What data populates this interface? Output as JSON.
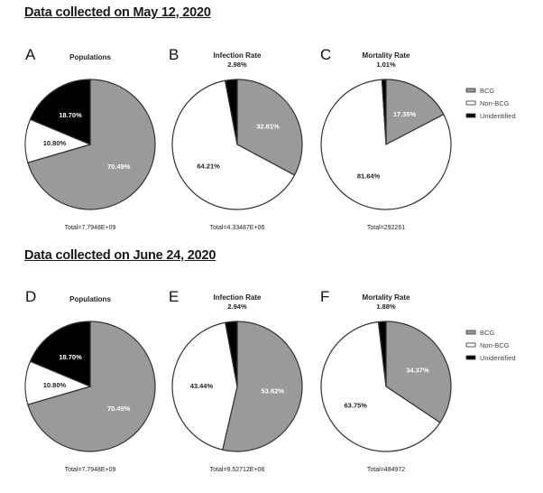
{
  "sections": [
    {
      "title": "Data collected on May 12, 2020"
    },
    {
      "title": "Data collected on June 24, 2020"
    }
  ],
  "colors": {
    "BCG": "#9a9a9a",
    "Non-BCG": "#ffffff",
    "Unidentified": "#000000",
    "outline": "#333333"
  },
  "chart_data": [
    {
      "type": "pie",
      "panel": "A",
      "title": "Populations",
      "total": "Total=7.7948E+09",
      "slices": [
        {
          "name": "BCG",
          "value": 70.49,
          "label": "70.49%"
        },
        {
          "name": "Non-BCG",
          "value": 10.8,
          "label": "10.80%"
        },
        {
          "name": "Unidentified",
          "value": 18.7,
          "label": "18.70%"
        }
      ],
      "legend": null
    },
    {
      "type": "pie",
      "panel": "B",
      "title": "Infection Rate",
      "total": "Total=4.33487E+06",
      "slices": [
        {
          "name": "BCG",
          "value": 32.81,
          "label": "32.81%"
        },
        {
          "name": "Non-BCG",
          "value": 64.21,
          "label": "64.21%"
        },
        {
          "name": "Unidentified",
          "value": 2.98,
          "label": "2.98%"
        }
      ],
      "legend": null
    },
    {
      "type": "pie",
      "panel": "C",
      "title": "Mortality Rate",
      "total": "Total=292261",
      "slices": [
        {
          "name": "BCG",
          "value": 17.35,
          "label": "17.35%"
        },
        {
          "name": "Non-BCG",
          "value": 81.64,
          "label": "81.64%"
        },
        {
          "name": "Unidentified",
          "value": 1.01,
          "label": "1.01%"
        }
      ],
      "legend": [
        "BCG",
        "Non-BCG",
        "Unidentified"
      ]
    },
    {
      "type": "pie",
      "panel": "D",
      "title": "Populations",
      "total": "Total=7.7948E+09",
      "slices": [
        {
          "name": "BCG",
          "value": 70.49,
          "label": "70.49%"
        },
        {
          "name": "Non-BCG",
          "value": 10.8,
          "label": "10.80%"
        },
        {
          "name": "Unidentified",
          "value": 18.7,
          "label": "18.70%"
        }
      ],
      "legend": null
    },
    {
      "type": "pie",
      "panel": "E",
      "title": "Infection Rate",
      "total": "Total=9.52712E+06",
      "slices": [
        {
          "name": "BCG",
          "value": 53.62,
          "label": "53.62%"
        },
        {
          "name": "Non-BCG",
          "value": 43.44,
          "label": "43.44%"
        },
        {
          "name": "Unidentified",
          "value": 2.94,
          "label": "2.94%"
        }
      ],
      "legend": null
    },
    {
      "type": "pie",
      "panel": "F",
      "title": "Mortality Rate",
      "total": "Total=484972",
      "slices": [
        {
          "name": "BCG",
          "value": 34.37,
          "label": "34.37%"
        },
        {
          "name": "Non-BCG",
          "value": 63.75,
          "label": "63.75%"
        },
        {
          "name": "Unidentified",
          "value": 1.88,
          "label": "1.88%"
        }
      ],
      "legend": [
        "BCG",
        "Non-BCG",
        "Unidentified"
      ]
    }
  ]
}
